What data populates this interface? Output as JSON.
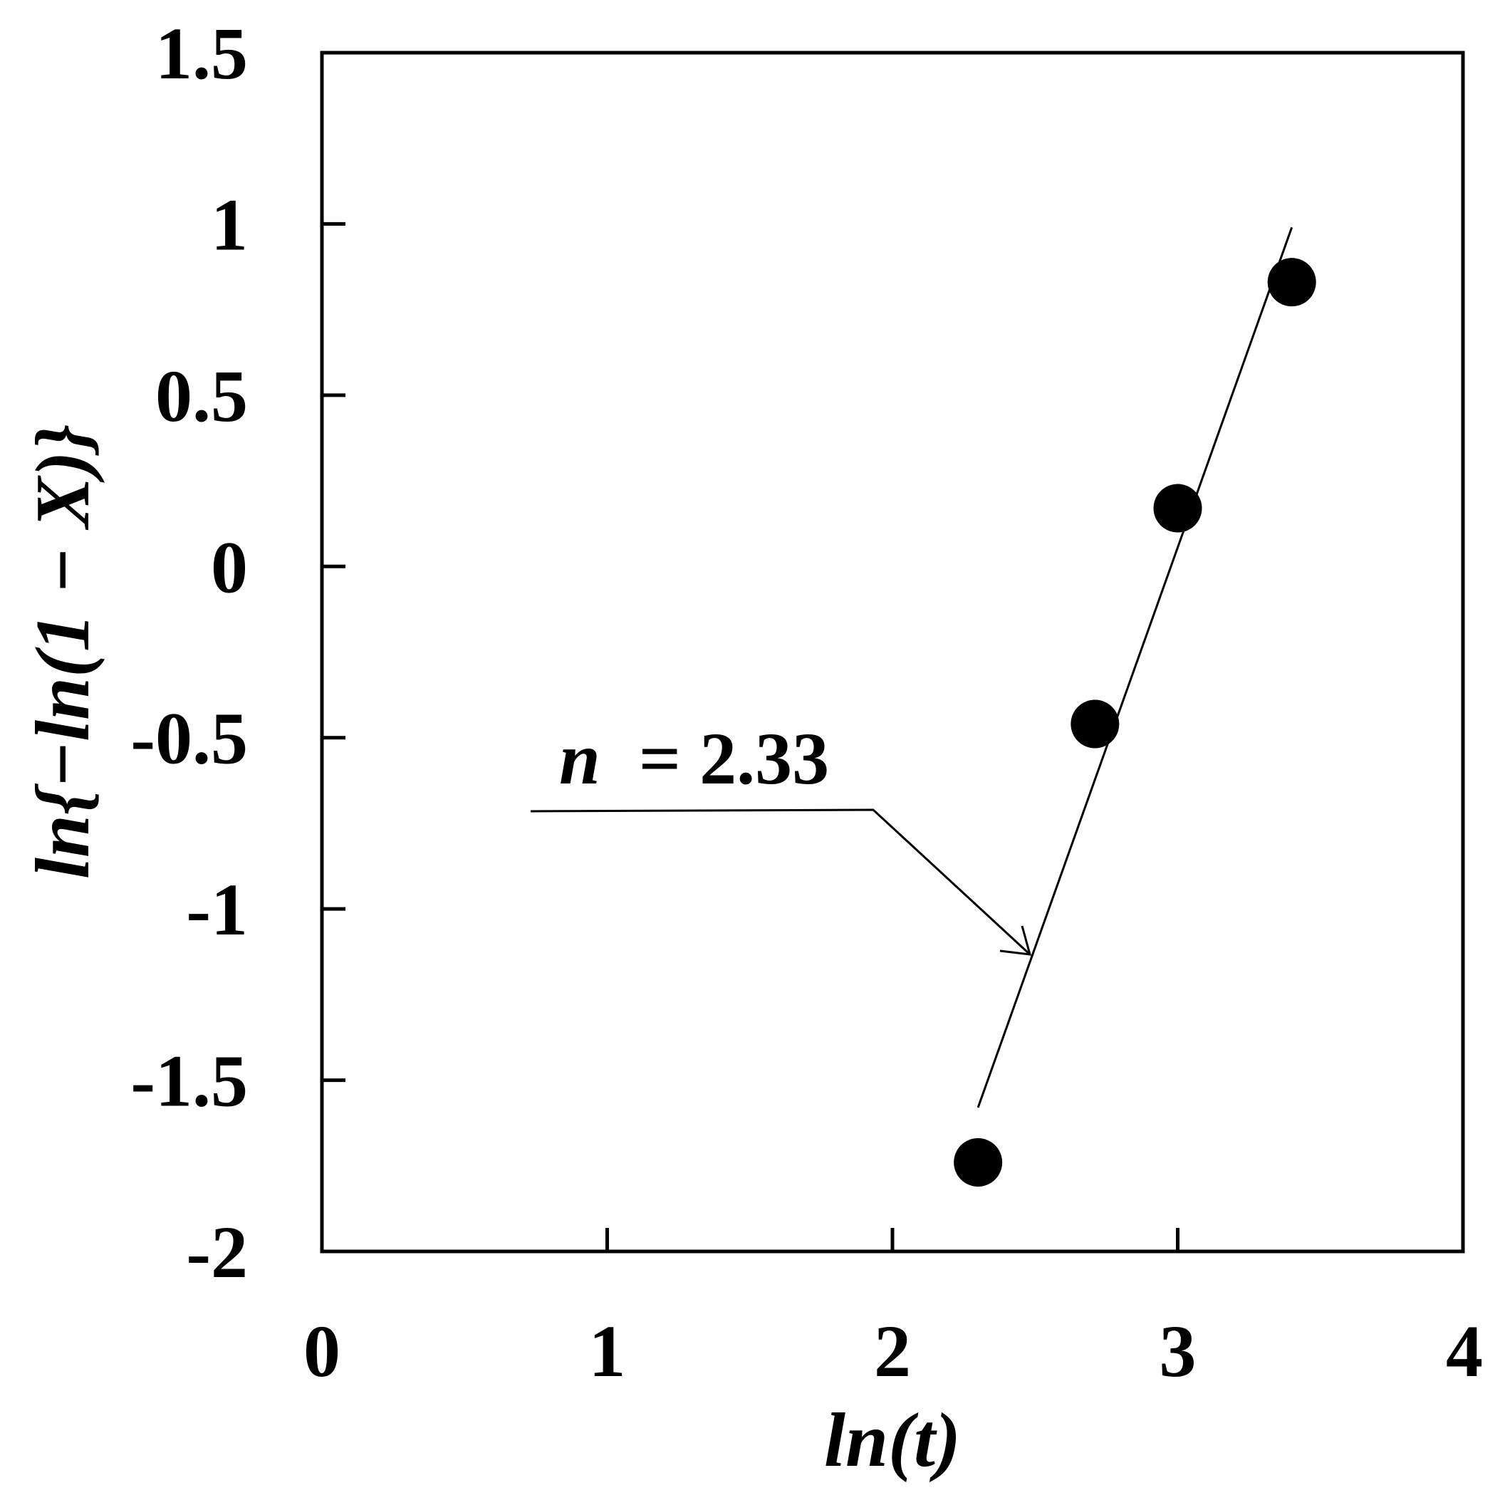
{
  "chart_data": {
    "type": "scatter",
    "xlabel": "ln(t)",
    "ylabel": "ln{−ln(1 − X)}",
    "xlim": [
      0,
      4
    ],
    "ylim": [
      -2,
      1.5
    ],
    "x_ticks": [
      "0",
      "1",
      "2",
      "3",
      "4"
    ],
    "y_ticks": [
      "-2",
      "-1.5",
      "-1",
      "-0.5",
      "0",
      "0.5",
      "1",
      "1.5"
    ],
    "grid": false,
    "series": [
      {
        "points": [
          {
            "x": 2.3,
            "y": -1.74
          },
          {
            "x": 2.71,
            "y": -0.46
          },
          {
            "x": 3.0,
            "y": 0.17
          },
          {
            "x": 3.4,
            "y": 0.83
          }
        ]
      }
    ],
    "fit_line": {
      "x": [
        2.3,
        3.4
      ],
      "y": [
        -1.58,
        0.99
      ]
    },
    "annotation": {
      "variable": "n",
      "equals": "= 2.33"
    },
    "colors": {
      "marker": "#000000",
      "line": "#000000",
      "axis": "#000000"
    }
  }
}
